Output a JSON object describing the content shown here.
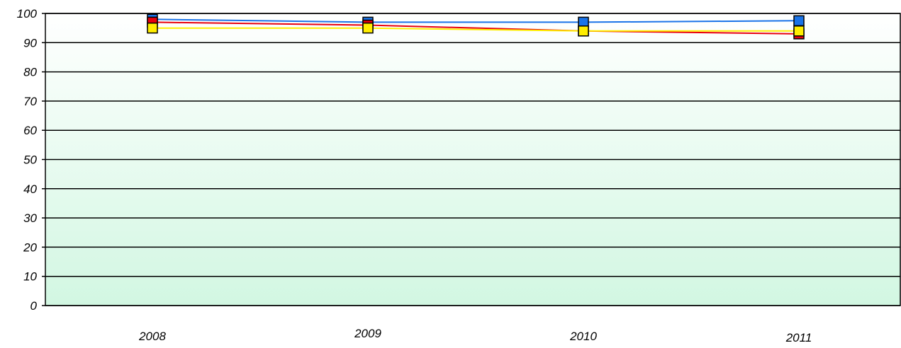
{
  "chart_data": {
    "type": "line",
    "title": "",
    "xlabel": "",
    "ylabel": "",
    "categories": [
      "2008",
      "2009",
      "2010",
      "2011"
    ],
    "ylim": [
      0,
      100
    ],
    "yticks": [
      0,
      10,
      20,
      30,
      40,
      50,
      60,
      70,
      80,
      90,
      100
    ],
    "grid": true,
    "legend": "none",
    "background_gradient": [
      "#ffffff",
      "#d2f7e2"
    ],
    "series": [
      {
        "color": "#1a73e8",
        "values": [
          98,
          97,
          97,
          97.5
        ]
      },
      {
        "color": "#e8000d",
        "values": [
          97,
          96,
          94,
          93
        ]
      },
      {
        "color": "#ffee00",
        "values": [
          95,
          95,
          94,
          94
        ]
      }
    ]
  }
}
